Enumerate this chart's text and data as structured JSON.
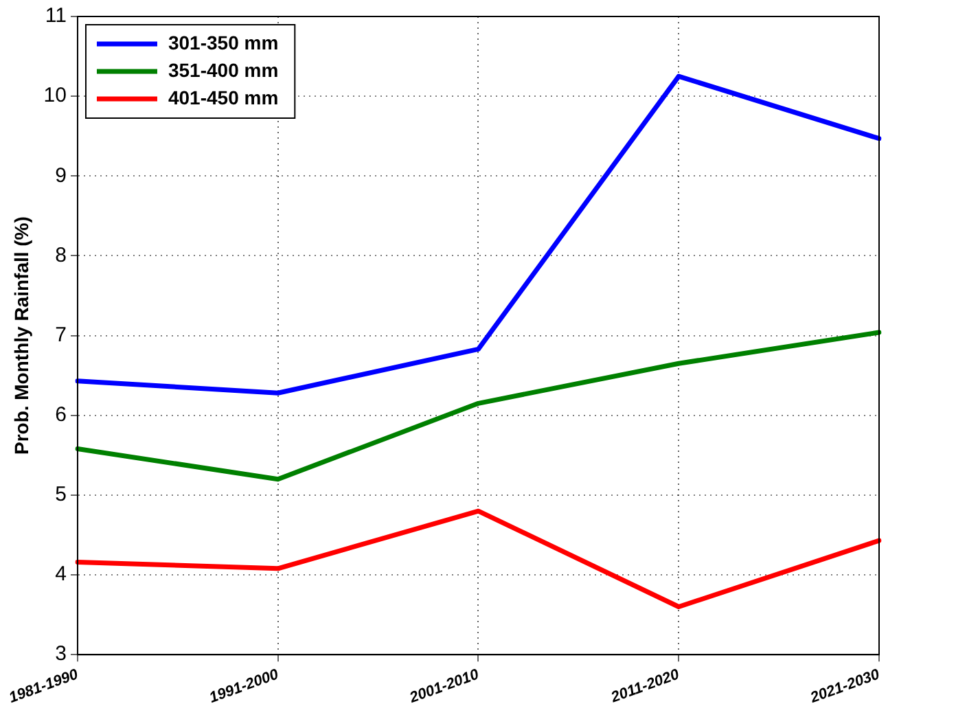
{
  "chart_data": {
    "type": "line",
    "ylabel": "Prob. Monthly Rainfall (%)",
    "categories": [
      "1981-1990",
      "1991-2000",
      "2001-2010",
      "2011-2020",
      "2021-2030"
    ],
    "series": [
      {
        "name": "301-350 mm",
        "color": "#0000ff",
        "values": [
          6.43,
          6.28,
          6.83,
          10.25,
          9.47
        ]
      },
      {
        "name": "351-400 mm",
        "color": "#008000",
        "values": [
          5.58,
          5.2,
          6.15,
          6.65,
          7.04
        ]
      },
      {
        "name": "401-450 mm",
        "color": "#ff0000",
        "values": [
          4.16,
          4.08,
          4.8,
          3.6,
          4.43
        ]
      }
    ],
    "ylim": [
      3,
      11
    ],
    "yticks": [
      3,
      4,
      5,
      6,
      7,
      8,
      9,
      10,
      11
    ],
    "grid": true,
    "legend": "top left",
    "marker": "none",
    "line_style": "solid"
  }
}
